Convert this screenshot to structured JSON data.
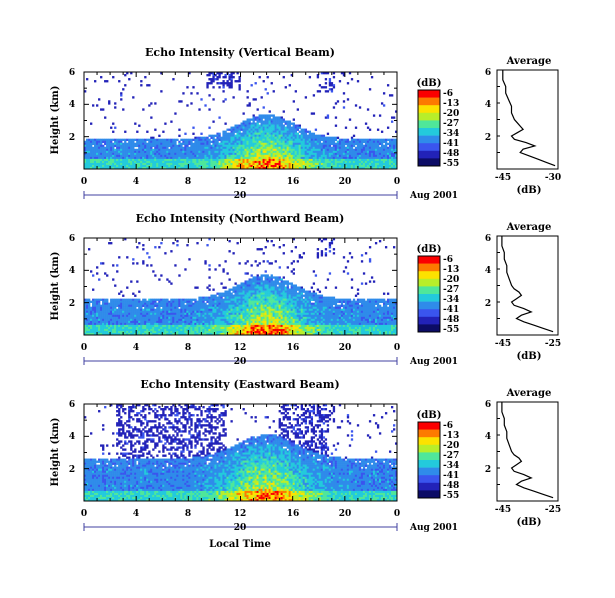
{
  "date_label": "Aug 2001",
  "xlabel": "Local Time",
  "colorbar": {
    "unit": "(dB)",
    "ticks": [
      "-6",
      "-13",
      "-20",
      "-27",
      "-34",
      "-41",
      "-48",
      "-55"
    ],
    "colors": [
      "#fb0000",
      "#fd7a00",
      "#fce200",
      "#b8ee2a",
      "#4fe79a",
      "#23cadc",
      "#2f8bea",
      "#3a55ee",
      "#2222b8",
      "#0c0c66"
    ]
  },
  "chart_data": [
    {
      "type": "heatmap",
      "title": "Echo Intensity (Vertical Beam)",
      "ylabel": "Height (km)",
      "x_ticks": [
        "0",
        "4",
        "8",
        "12",
        "16",
        "20",
        "0"
      ],
      "day_label": "20",
      "y_ticks": [
        "2",
        "4",
        "6"
      ],
      "xlim": [
        0,
        24
      ],
      "ylim": [
        0,
        6
      ],
      "zlim": [
        -55,
        -6
      ],
      "profile": {
        "title": "Average",
        "xlabel": "(dB)",
        "x_ticks": [
          "-45",
          "-30"
        ],
        "y_ticks": [
          "2",
          "4",
          "6"
        ],
        "xlim": [
          -50,
          -29
        ],
        "height_km": [
          0.2,
          0.4,
          0.6,
          0.8,
          1.0,
          1.2,
          1.4,
          1.6,
          1.8,
          2.0,
          2.2,
          2.4,
          2.6,
          2.8,
          3.0,
          3.4,
          3.8,
          4.2,
          4.6,
          5.0,
          5.4,
          5.8,
          6.0
        ],
        "values_db": [
          -30,
          -33,
          -36,
          -39,
          -42,
          -41,
          -37,
          -40,
          -44,
          -45,
          -43,
          -41,
          -42,
          -43,
          -44,
          -45,
          -45,
          -46,
          -47,
          -47,
          -48,
          -48,
          -48
        ]
      }
    },
    {
      "type": "heatmap",
      "title": "Echo Intensity (Northward Beam)",
      "ylabel": "Height (km)",
      "x_ticks": [
        "0",
        "4",
        "8",
        "12",
        "16",
        "20",
        "0"
      ],
      "day_label": "20",
      "y_ticks": [
        "2",
        "4",
        "6"
      ],
      "xlim": [
        0,
        24
      ],
      "ylim": [
        0,
        6
      ],
      "zlim": [
        -55,
        -6
      ],
      "profile": {
        "title": "Average",
        "xlabel": "(dB)",
        "x_ticks": [
          "-45",
          "-25"
        ],
        "y_ticks": [
          "2",
          "4",
          "6"
        ],
        "xlim": [
          -50,
          -25
        ],
        "height_km": [
          0.2,
          0.4,
          0.6,
          0.8,
          1.0,
          1.2,
          1.4,
          1.6,
          1.8,
          2.0,
          2.2,
          2.4,
          2.6,
          2.8,
          3.0,
          3.4,
          3.8,
          4.2,
          4.6,
          5.0,
          5.4,
          5.8,
          6.0
        ],
        "values_db": [
          -27,
          -31,
          -35,
          -39,
          -42,
          -40,
          -36,
          -39,
          -43,
          -44,
          -42,
          -40,
          -41,
          -43,
          -44,
          -45,
          -46,
          -46,
          -47,
          -47,
          -48,
          -48,
          -48
        ]
      }
    },
    {
      "type": "heatmap",
      "title": "Echo Intensity (Eastward Beam)",
      "ylabel": "Height (km)",
      "x_ticks": [
        "0",
        "4",
        "8",
        "12",
        "16",
        "20",
        "0"
      ],
      "day_label": "20",
      "y_ticks": [
        "2",
        "4",
        "6"
      ],
      "xlim": [
        0,
        24
      ],
      "ylim": [
        0,
        6
      ],
      "zlim": [
        -55,
        -6
      ],
      "profile": {
        "title": "Average",
        "xlabel": "(dB)",
        "x_ticks": [
          "-45",
          "-25"
        ],
        "y_ticks": [
          "2",
          "4",
          "6"
        ],
        "xlim": [
          -50,
          -25
        ],
        "height_km": [
          0.2,
          0.4,
          0.6,
          0.8,
          1.0,
          1.2,
          1.4,
          1.6,
          1.8,
          2.0,
          2.2,
          2.4,
          2.6,
          2.8,
          3.0,
          3.4,
          3.8,
          4.2,
          4.6,
          5.0,
          5.4,
          5.8,
          6.0
        ],
        "values_db": [
          -27,
          -31,
          -35,
          -39,
          -42,
          -40,
          -36,
          -39,
          -43,
          -44,
          -42,
          -40,
          -41,
          -43,
          -44,
          -45,
          -46,
          -46,
          -47,
          -47,
          -48,
          -48,
          -48
        ]
      }
    }
  ]
}
